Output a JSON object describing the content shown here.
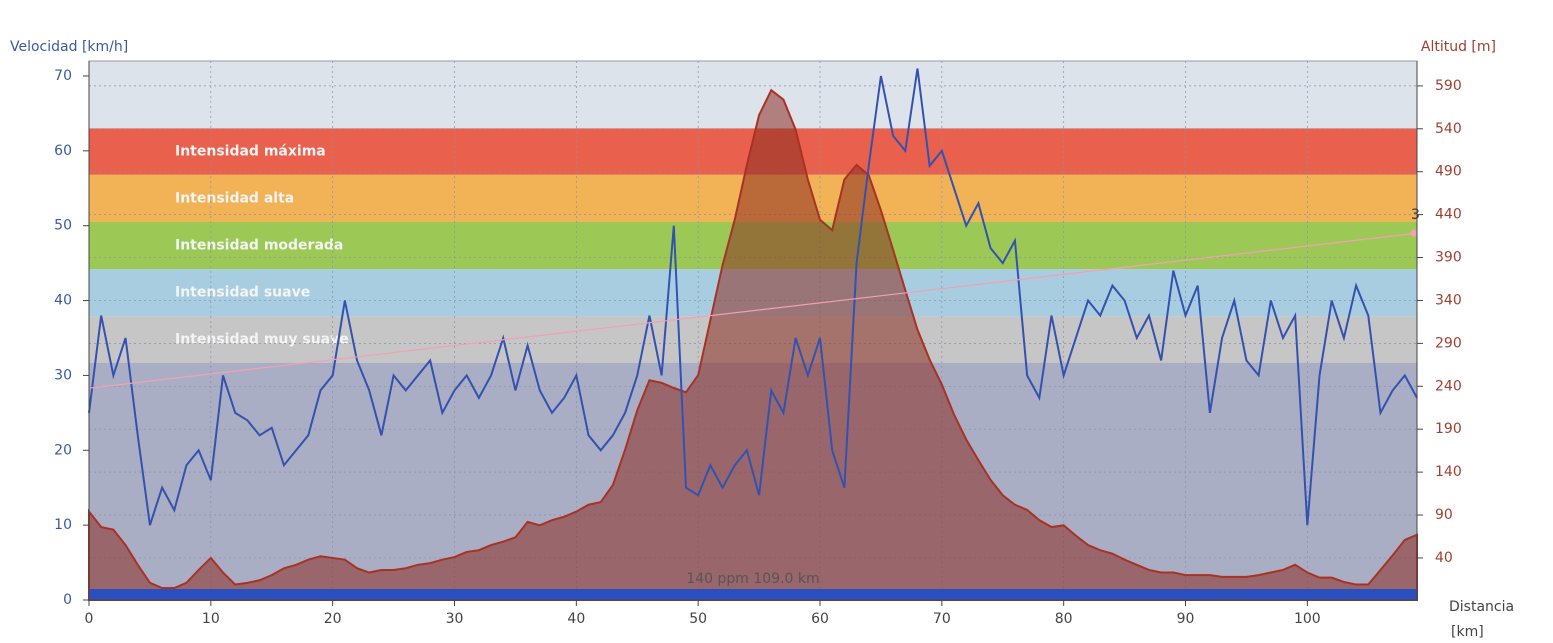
{
  "chart_data": {
    "type": "line",
    "ylabel": "Velocidad [km/h]",
    "y2label": "Altitud [m]",
    "xlabel": "Distancia",
    "xlabel_unit": "[km]",
    "xlim": [
      0,
      109
    ],
    "ylim": [
      0,
      72
    ],
    "y2lim": [
      -9,
      619
    ],
    "xticks": [
      0,
      10,
      20,
      30,
      40,
      50,
      60,
      70,
      80,
      90,
      100
    ],
    "yticks": [
      0,
      10,
      20,
      30,
      40,
      50,
      60,
      70
    ],
    "y2ticks": [
      40,
      90,
      140,
      190,
      240,
      290,
      340,
      390,
      440,
      490,
      540,
      590
    ],
    "grid": true,
    "bands": [
      {
        "label": "Intensidad máxima",
        "from": 56.8,
        "to": 63,
        "color": "#e9604c"
      },
      {
        "label": "Intensidad alta",
        "from": 50.5,
        "to": 56.8,
        "color": "#f1b356"
      },
      {
        "label": "Intensidad moderada",
        "from": 44.2,
        "to": 50.5,
        "color": "#9cc956"
      },
      {
        "label": "Intensidad suave",
        "from": 37.9,
        "to": 44.2,
        "color": "#a9cde0"
      },
      {
        "label": "Intensidad muy suave",
        "from": 31.7,
        "to": 37.9,
        "color": "#c6c6c6"
      }
    ],
    "x": [
      0,
      1,
      2,
      3,
      4,
      5,
      6,
      7,
      8,
      9,
      10,
      11,
      12,
      13,
      14,
      15,
      16,
      17,
      18,
      19,
      20,
      21,
      22,
      23,
      24,
      25,
      26,
      27,
      28,
      29,
      30,
      31,
      32,
      33,
      34,
      35,
      36,
      37,
      38,
      39,
      40,
      41,
      42,
      43,
      44,
      45,
      46,
      47,
      48,
      49,
      50,
      51,
      52,
      53,
      54,
      55,
      56,
      57,
      58,
      59,
      60,
      61,
      62,
      63,
      64,
      65,
      66,
      67,
      68,
      69,
      70,
      71,
      72,
      73,
      74,
      75,
      76,
      77,
      78,
      79,
      80,
      81,
      82,
      83,
      84,
      85,
      86,
      87,
      88,
      89,
      90,
      91,
      92,
      93,
      94,
      95,
      96,
      97,
      98,
      99,
      100,
      101,
      102,
      103,
      104,
      105,
      106,
      107,
      108,
      109
    ],
    "series": [
      {
        "name": "Altitud",
        "axis": "y2",
        "color": "#a83224",
        "values": [
          94,
          76,
          73,
          55,
          32,
          11,
          5,
          5,
          11,
          26,
          40,
          23,
          9,
          11,
          14,
          20,
          28,
          32,
          38,
          42,
          40,
          38,
          28,
          23,
          26,
          26,
          28,
          32,
          34,
          38,
          41,
          47,
          49,
          55,
          59,
          64,
          82,
          78,
          84,
          88,
          94,
          102,
          105,
          125,
          166,
          212,
          247,
          244,
          238,
          233,
          253,
          317,
          381,
          434,
          498,
          556,
          585,
          574,
          539,
          481,
          434,
          422,
          481,
          498,
          486,
          445,
          399,
          352,
          306,
          271,
          242,
          207,
          178,
          154,
          131,
          113,
          102,
          96,
          84,
          76,
          78,
          66,
          55,
          49,
          45,
          38,
          32,
          26,
          23,
          23,
          20,
          20,
          20,
          18,
          18,
          18,
          20,
          23,
          26,
          32,
          23,
          17,
          17,
          12,
          9,
          9,
          26,
          43,
          61,
          67
        ]
      },
      {
        "name": "Velocidad",
        "color": "#3352b0",
        "values": [
          25,
          38,
          30,
          35,
          22,
          10,
          15,
          12,
          18,
          20,
          16,
          30,
          25,
          24,
          22,
          23,
          18,
          20,
          22,
          28,
          30,
          40,
          32,
          28,
          22,
          30,
          28,
          30,
          32,
          25,
          28,
          30,
          27,
          30,
          35,
          28,
          34,
          28,
          25,
          27,
          30,
          22,
          20,
          22,
          25,
          30,
          38,
          30,
          50,
          15,
          14,
          18,
          15,
          18,
          20,
          14,
          28,
          25,
          35,
          30,
          35,
          20,
          15,
          45,
          58,
          70,
          62,
          60,
          71,
          58,
          60,
          55,
          50,
          53,
          47,
          45,
          48,
          30,
          27,
          38,
          30,
          35,
          40,
          38,
          42,
          40,
          35,
          38,
          32,
          44,
          38,
          42,
          25,
          35,
          40,
          32,
          30,
          40,
          35,
          38,
          10,
          30,
          40,
          35,
          42,
          38,
          25,
          28,
          30,
          27
        ]
      }
    ],
    "trend": {
      "x": [
        0,
        109
      ],
      "values": [
        28.3,
        49
      ],
      "color": "#f2a0b4",
      "label": "3"
    },
    "annotation": "140 ppm 109.0 km"
  }
}
